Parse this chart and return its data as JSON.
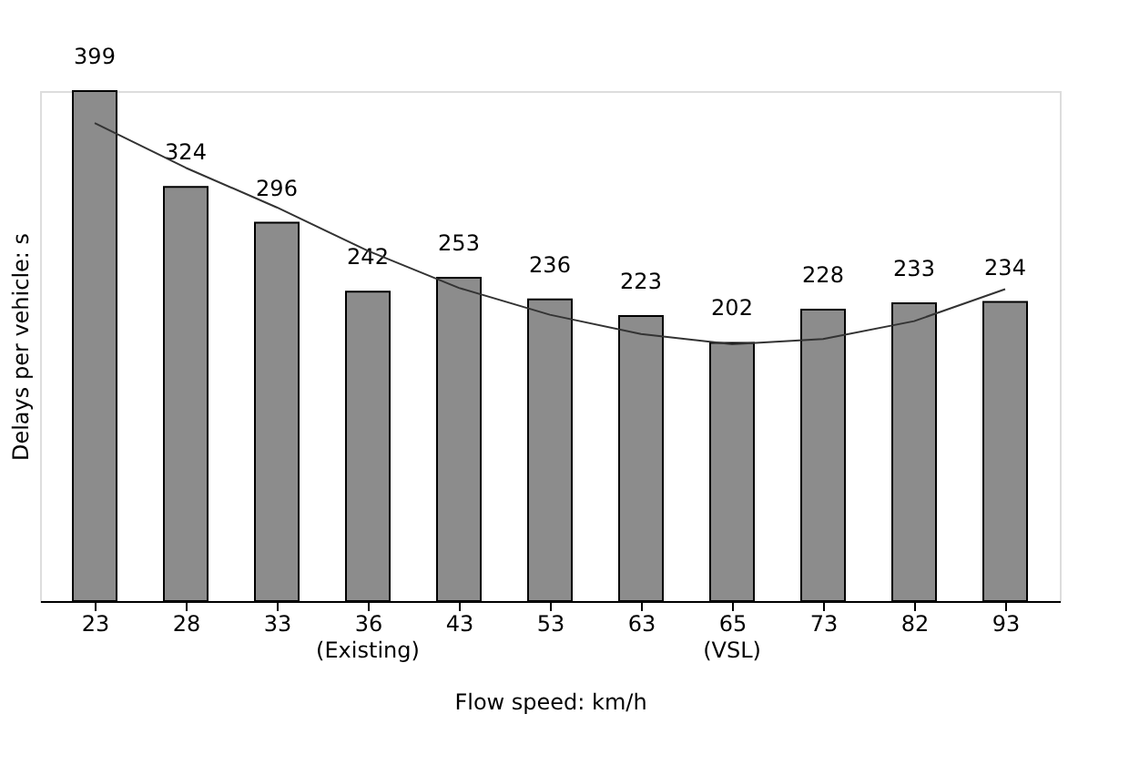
{
  "chart_data": {
    "type": "bar",
    "xlabel": "Flow speed: km/h",
    "ylabel": "Delays per vehicle: s",
    "categories": [
      "23",
      "28",
      "33",
      "36",
      "43",
      "53",
      "63",
      "65",
      "73",
      "82",
      "93"
    ],
    "series": [
      {
        "color": "#8c8c8c",
        "values": [
          399,
          324,
          296,
          242,
          253,
          236,
          223,
          202,
          228,
          233,
          234
        ],
        "value_labels": [
          "399",
          "324",
          "296",
          "242",
          "253",
          "236",
          "223",
          "202",
          "228",
          "233",
          "234"
        ]
      },
      {
        "type": "line",
        "color": "#333333",
        "x": [
          "23",
          "28",
          "33",
          "36",
          "43",
          "53",
          "63",
          "65",
          "73",
          "82",
          "93"
        ],
        "values": [
          374,
          339,
          308,
          274,
          245,
          224,
          209,
          201,
          205,
          219,
          244
        ]
      }
    ],
    "tick_labels": "x",
    "grid": false,
    "annotations": [
      "(Existing)",
      "(VSL)"
    ]
  }
}
